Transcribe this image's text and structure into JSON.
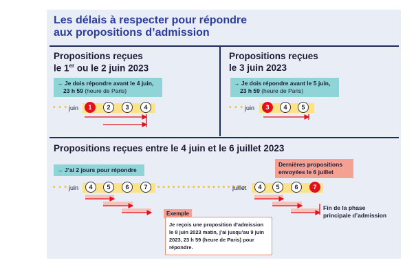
{
  "header": {
    "title_lines": [
      "Les délais à respecter pour répondre",
      "aux propositions d’admission"
    ]
  },
  "sections": [
    {
      "heading_lines": [
        "Propositions reçues",
        "le 1",
        "er",
        " ou le 2 juin 2023"
      ],
      "note": {
        "line1": "→ Je dois répondre avant le 4 juin,",
        "time": "23 h 59",
        "rest": " (heure de Paris)"
      },
      "month": "juin",
      "days": [
        "1",
        "2",
        "3",
        "4"
      ]
    },
    {
      "heading_lines": [
        "Propositions reçues",
        "le 3 juin 2023"
      ],
      "note": {
        "line1": "→ Je dois répondre avant le 5 juin,",
        "time": "23 h 59",
        "rest": " (heure de Paris)"
      },
      "month": "juin",
      "days": [
        "3",
        "4",
        "5"
      ]
    }
  ],
  "bottom": {
    "heading": "Propositions reçues entre le 4 juin et le 6 juillet 2023",
    "note": "→ J’ai 2 jours pour répondre",
    "timelines": [
      {
        "month": "juin",
        "days": [
          "4",
          "5",
          "6",
          "7"
        ]
      },
      {
        "month": "juillet",
        "days": [
          "4",
          "5",
          "6",
          "7"
        ]
      }
    ],
    "last_sent": [
      "Dernières propositions",
      "envoyées le 6 juillet"
    ],
    "end_label": [
      "Fin de la phase",
      "principale d’admission"
    ],
    "example": {
      "label": "Exemple",
      "lines": [
        "Je reçois une proposition d’admission",
        "le 8 juin 2023 matin, j’ai jusqu’au 9 juin",
        "2023, 23 h 59 (heure de Paris) pour",
        "répondre."
      ]
    }
  }
}
